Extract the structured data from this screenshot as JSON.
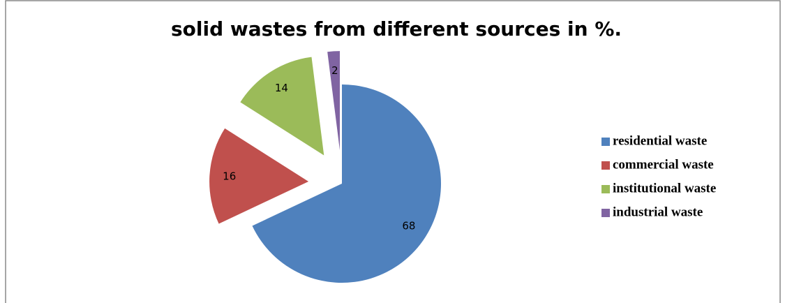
{
  "chart_data": {
    "type": "pie",
    "title": "solid wastes from different sources in %.",
    "categories": [
      "residential waste",
      "commercial waste",
      "institutional waste",
      "industrial waste"
    ],
    "values": [
      68,
      16,
      14,
      2
    ],
    "colors": [
      "#4f81bd",
      "#c0504d",
      "#9bbb59",
      "#8064a2"
    ]
  }
}
